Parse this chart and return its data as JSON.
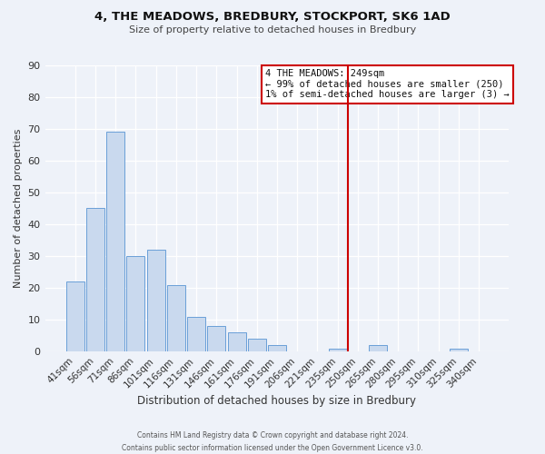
{
  "title": "4, THE MEADOWS, BREDBURY, STOCKPORT, SK6 1AD",
  "subtitle": "Size of property relative to detached houses in Bredbury",
  "xlabel": "Distribution of detached houses by size in Bredbury",
  "ylabel": "Number of detached properties",
  "bar_labels": [
    "41sqm",
    "56sqm",
    "71sqm",
    "86sqm",
    "101sqm",
    "116sqm",
    "131sqm",
    "146sqm",
    "161sqm",
    "176sqm",
    "191sqm",
    "206sqm",
    "221sqm",
    "235sqm",
    "250sqm",
    "265sqm",
    "280sqm",
    "295sqm",
    "310sqm",
    "325sqm",
    "340sqm"
  ],
  "bar_values": [
    22,
    45,
    69,
    30,
    32,
    21,
    11,
    8,
    6,
    4,
    2,
    0,
    0,
    1,
    0,
    2,
    0,
    0,
    0,
    1,
    0
  ],
  "bar_color": "#c9d9ee",
  "bar_edge_color": "#6a9fd8",
  "ylim": [
    0,
    90
  ],
  "yticks": [
    0,
    10,
    20,
    30,
    40,
    50,
    60,
    70,
    80,
    90
  ],
  "vline_x_index": 14,
  "vline_color": "#cc0000",
  "annotation_title": "4 THE MEADOWS: 249sqm",
  "annotation_line1": "← 99% of detached houses are smaller (250)",
  "annotation_line2": "1% of semi-detached houses are larger (3) →",
  "annotation_box_color": "#cc0000",
  "footer_line1": "Contains HM Land Registry data © Crown copyright and database right 2024.",
  "footer_line2": "Contains public sector information licensed under the Open Government Licence v3.0.",
  "background_color": "#eef2f9"
}
